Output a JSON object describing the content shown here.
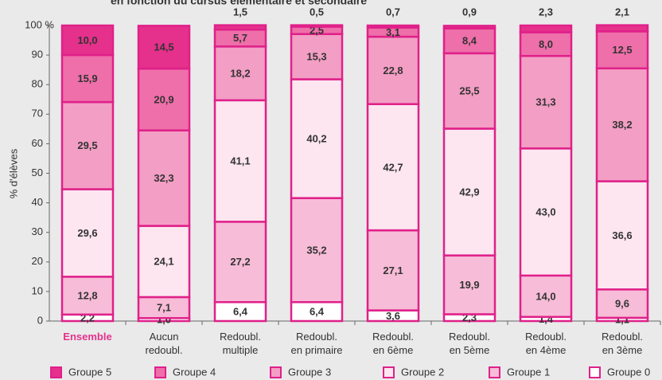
{
  "chart_data": {
    "type": "stacked_bar",
    "title": "en fonction du cursus élémentaire et secondaire",
    "y_label": "% d'élèves",
    "categories": [
      "Ensemble",
      "Aucun redoubl.",
      "Redoubl. multiple",
      "Redoubl. en primaire",
      "Redoubl. en 6ème",
      "Redoubl. en 5ème",
      "Redoubl. en 4ème",
      "Redoubl. en 3ème"
    ],
    "ylim": [
      0,
      100
    ],
    "yticks": [
      0,
      10,
      20,
      30,
      40,
      50,
      60,
      70,
      80,
      90,
      {
        "value": 100,
        "label": "100 %"
      }
    ],
    "series": [
      {
        "name": "Groupe 0",
        "color": "#ffffff",
        "values": [
          2.2,
          1.0,
          6.4,
          6.4,
          3.6,
          2.3,
          1.4,
          1.1
        ],
        "value_labels": [
          "2,2",
          "1,0",
          "6,4",
          "6,4",
          "3,6",
          "2,3",
          "1,4",
          "1,1"
        ]
      },
      {
        "name": "Groupe 1",
        "color": "#f7bcd7",
        "values": [
          12.8,
          7.1,
          27.2,
          35.2,
          27.1,
          19.9,
          14.0,
          9.6
        ],
        "value_labels": [
          "12,8",
          "7,1",
          "27,2",
          "35,2",
          "27,1",
          "19,9",
          "14,0",
          "9,6"
        ]
      },
      {
        "name": "Groupe 2",
        "color": "#fde6f0",
        "values": [
          29.6,
          24.1,
          41.1,
          40.2,
          42.7,
          42.9,
          43.0,
          36.6
        ],
        "value_labels": [
          "29,6",
          "24,1",
          "41,1",
          "40,2",
          "42,7",
          "42,9",
          "43,0",
          "36,6"
        ]
      },
      {
        "name": "Groupe 3",
        "color": "#f39ec4",
        "values": [
          29.5,
          32.3,
          18.2,
          15.3,
          22.8,
          25.5,
          31.3,
          38.2
        ],
        "value_labels": [
          "29,5",
          "32,3",
          "18,2",
          "15,3",
          "22,8",
          "25,5",
          "31,3",
          "38,2"
        ]
      },
      {
        "name": "Groupe 4",
        "color": "#ee6fa9",
        "values": [
          15.9,
          20.9,
          5.7,
          2.5,
          3.1,
          8.4,
          8.0,
          12.5
        ],
        "value_labels": [
          "15,9",
          "20,9",
          "5,7",
          "2,5",
          "3,1",
          "8,4",
          "8,0",
          "12,5"
        ]
      },
      {
        "name": "Groupe 5",
        "color": "#e5318b",
        "values": [
          10.0,
          14.5,
          1.5,
          0.5,
          0.7,
          0.9,
          2.3,
          2.1
        ],
        "value_labels": [
          "10,0",
          "14,5",
          "1,5",
          "0,5",
          "0,7",
          "0,9",
          "2,3",
          "2,1"
        ]
      }
    ]
  }
}
